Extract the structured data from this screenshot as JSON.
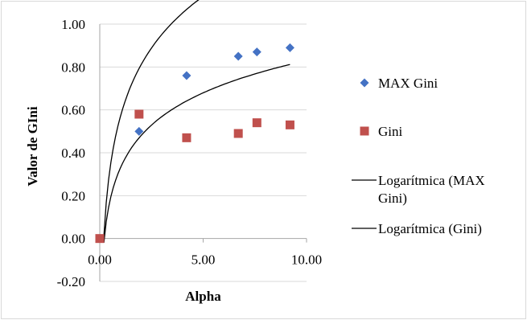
{
  "chart_data": {
    "type": "scatter",
    "xlabel": "Alpha",
    "ylabel": "Valor de GIni",
    "xlim": [
      0,
      10
    ],
    "ylim": [
      -0.2,
      1.0
    ],
    "x_ticks": [
      "0.00",
      "5.00",
      "10.00"
    ],
    "y_ticks": [
      "-0.20",
      "0.00",
      "0.20",
      "0.40",
      "0.60",
      "0.80",
      "1.00"
    ],
    "grid": "horizontal",
    "legend_position": "right",
    "series": [
      {
        "name": "MAX Gini",
        "marker": "diamond",
        "color": "#4472C4",
        "x": [
          0.0,
          1.9,
          4.2,
          6.7,
          7.6,
          9.2
        ],
        "y": [
          0.0,
          0.5,
          0.76,
          0.85,
          0.87,
          0.89
        ]
      },
      {
        "name": "Gini",
        "marker": "square",
        "color": "#C0504D",
        "x": [
          0.0,
          1.9,
          4.2,
          6.7,
          7.6,
          9.2
        ],
        "y": [
          0.0,
          0.58,
          0.47,
          0.49,
          0.54,
          0.53
        ]
      }
    ],
    "trendlines": [
      {
        "name": "Logarítmica (MAX Gini)",
        "type": "logarithmic",
        "a": 0.8,
        "b": 0.57,
        "x_range": [
          0.2,
          9.2
        ],
        "color": "#000000"
      },
      {
        "name": "Logarítmica (Gini)",
        "type": "logarithmic",
        "a": 0.5,
        "b": 0.33,
        "x_range": [
          0.2,
          9.2
        ],
        "color": "#000000"
      }
    ],
    "legend": [
      {
        "label": "MAX Gini",
        "symbol": "diamond",
        "color": "#4472C4"
      },
      {
        "label": "Gini",
        "symbol": "square",
        "color": "#C0504D"
      },
      {
        "label_lines": [
          "Logarítmica (MAX",
          "Gini)"
        ],
        "symbol": "line",
        "color": "#000000"
      },
      {
        "label_lines": [
          "Logarítmica (Gini)"
        ],
        "symbol": "line",
        "color": "#000000"
      }
    ]
  }
}
